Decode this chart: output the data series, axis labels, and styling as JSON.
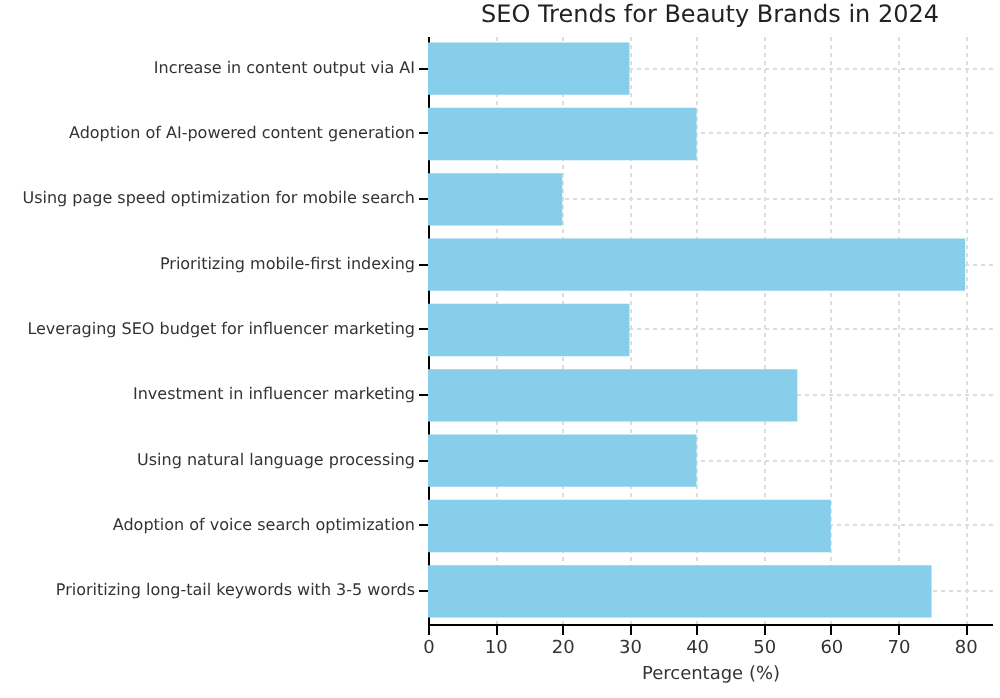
{
  "chart_data": {
    "type": "bar",
    "orientation": "horizontal",
    "title": "SEO Trends for Beauty Brands in 2024",
    "xlabel": "Percentage (%)",
    "categories": [
      "Increase in content output via AI",
      "Adoption of AI-powered content generation",
      "Using page speed optimization for mobile search",
      "Prioritizing mobile-first indexing",
      "Leveraging SEO budget for influencer marketing",
      "Investment in influencer marketing",
      "Using natural language processing",
      "Adoption of voice search optimization",
      "Prioritizing long-tail keywords with 3-5 words"
    ],
    "values": [
      30,
      40,
      20,
      80,
      30,
      55,
      40,
      60,
      75
    ],
    "color": "#87ceeb",
    "xlim": [
      0,
      84
    ],
    "xticks": [
      0,
      10,
      20,
      30,
      40,
      50,
      60,
      70,
      80
    ],
    "grid": true
  }
}
